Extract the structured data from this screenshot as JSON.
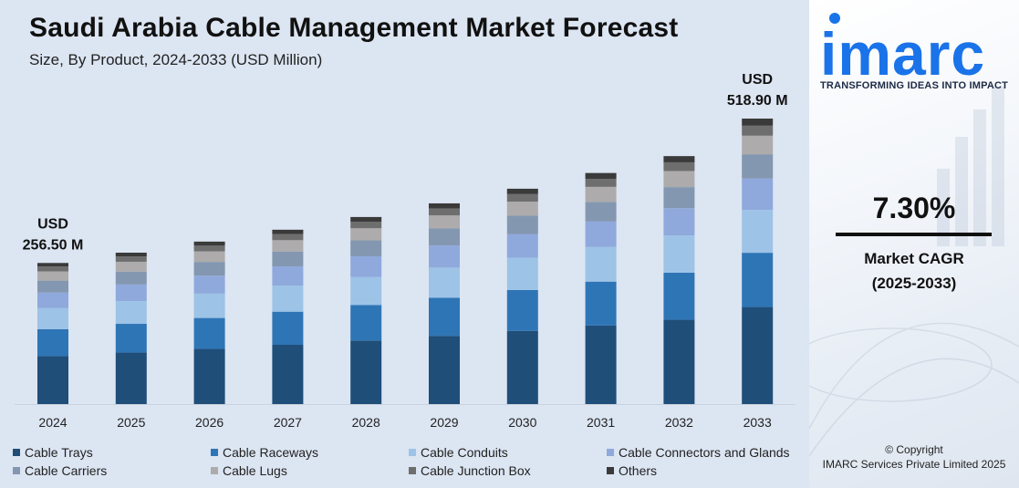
{
  "header": {
    "title": "Saudi Arabia Cable Management Market Forecast",
    "subtitle": "Size, By Product, 2024-2033 (USD Million)"
  },
  "brand": {
    "logo_text": "imarc",
    "tagline": "TRANSFORMING IDEAS INTO IMPACT",
    "accent_color": "#1a73e8"
  },
  "cagr": {
    "value": "7.30%",
    "label_line1": "Market CAGR",
    "label_line2": "(2025-2033)"
  },
  "footer": {
    "copyright_line1": "© Copyright",
    "copyright_line2": "IMARC Services Private Limited 2025"
  },
  "chart_data": {
    "type": "bar",
    "stacked": true,
    "title": "Saudi Arabia Cable Management Market Forecast",
    "subtitle": "Size, By Product, 2024-2033 (USD Million)",
    "categories": [
      "2024",
      "2025",
      "2026",
      "2027",
      "2028",
      "2029",
      "2030",
      "2031",
      "2032",
      "2033"
    ],
    "totals": [
      256.5,
      275.2,
      295.3,
      316.9,
      340.0,
      364.8,
      391.4,
      420.0,
      450.7,
      518.9
    ],
    "ylim": [
      0,
      520
    ],
    "grid": false,
    "legend_position": "bottom",
    "annotations": [
      {
        "category": "2024",
        "line1": "USD",
        "line2": "256.50 M"
      },
      {
        "category": "2033",
        "line1": "USD",
        "line2": "518.90 M"
      }
    ],
    "series": [
      {
        "name": "Cable Trays",
        "color": "#1f4e79",
        "shares": [
          0.34,
          0.34,
          0.34,
          0.34,
          0.34,
          0.34,
          0.34,
          0.34,
          0.34,
          0.34
        ]
      },
      {
        "name": "Cable Raceways",
        "color": "#2e75b6",
        "shares": [
          0.19,
          0.19,
          0.19,
          0.19,
          0.19,
          0.19,
          0.19,
          0.19,
          0.19,
          0.19
        ]
      },
      {
        "name": "Cable Conduits",
        "color": "#9dc3e6",
        "shares": [
          0.15,
          0.15,
          0.15,
          0.15,
          0.15,
          0.15,
          0.15,
          0.15,
          0.15,
          0.15
        ]
      },
      {
        "name": "Cable Connectors and Glands",
        "color": "#8fa9dc",
        "shares": [
          0.11,
          0.11,
          0.11,
          0.11,
          0.11,
          0.11,
          0.11,
          0.11,
          0.11,
          0.11
        ]
      },
      {
        "name": "Cable Carriers",
        "color": "#8497b0",
        "shares": [
          0.085,
          0.085,
          0.085,
          0.085,
          0.085,
          0.085,
          0.085,
          0.085,
          0.085,
          0.085
        ]
      },
      {
        "name": "Cable Lugs",
        "color": "#adabab",
        "shares": [
          0.065,
          0.065,
          0.065,
          0.065,
          0.065,
          0.065,
          0.065,
          0.065,
          0.065,
          0.065
        ]
      },
      {
        "name": "Cable Junction Box",
        "color": "#6e6e6e",
        "shares": [
          0.035,
          0.035,
          0.035,
          0.035,
          0.035,
          0.035,
          0.035,
          0.035,
          0.035,
          0.035
        ]
      },
      {
        "name": "Others",
        "color": "#3a3a3a",
        "shares": [
          0.025,
          0.025,
          0.025,
          0.025,
          0.025,
          0.025,
          0.025,
          0.025,
          0.025,
          0.025
        ]
      }
    ]
  }
}
